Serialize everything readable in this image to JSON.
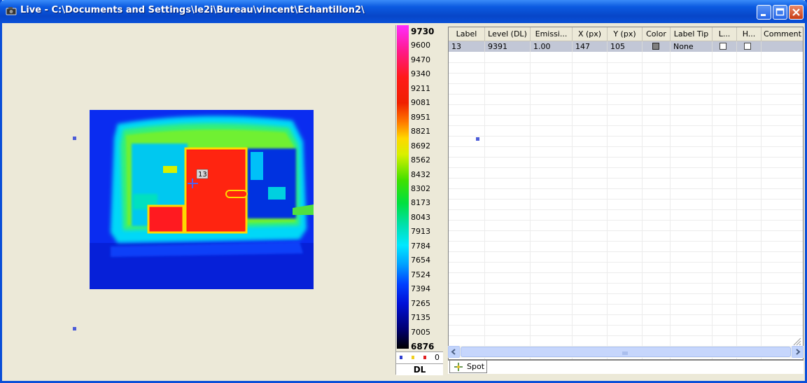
{
  "window": {
    "title": "Live - C:\\Documents and Settings\\le2i\\Bureau\\vincent\\Echantillon2\\",
    "icon": "camera-icon"
  },
  "image": {
    "spot_label": "13"
  },
  "scale": {
    "ticks": [
      "9730",
      "9600",
      "9470",
      "9340",
      "9211",
      "9081",
      "8951",
      "8821",
      "8692",
      "8562",
      "8432",
      "8302",
      "8173",
      "8043",
      "7913",
      "7784",
      "7654",
      "7524",
      "7394",
      "7265",
      "7135",
      "7005",
      "6876"
    ],
    "count_value": "0",
    "unit": "DL"
  },
  "table": {
    "columns": [
      "Label",
      "Level (DL)",
      "Emissi...",
      "X (px)",
      "Y (px)",
      "Color",
      "Label Tip",
      "L...",
      "H...",
      "Comment"
    ],
    "rows": [
      {
        "label": "13",
        "level": "9391",
        "emissivity": "1.00",
        "x": "147",
        "y": "105",
        "color": "#808080",
        "label_tip": "None",
        "l": false,
        "h": false,
        "comment": ""
      }
    ]
  },
  "tabs": {
    "spot": "Spot"
  }
}
